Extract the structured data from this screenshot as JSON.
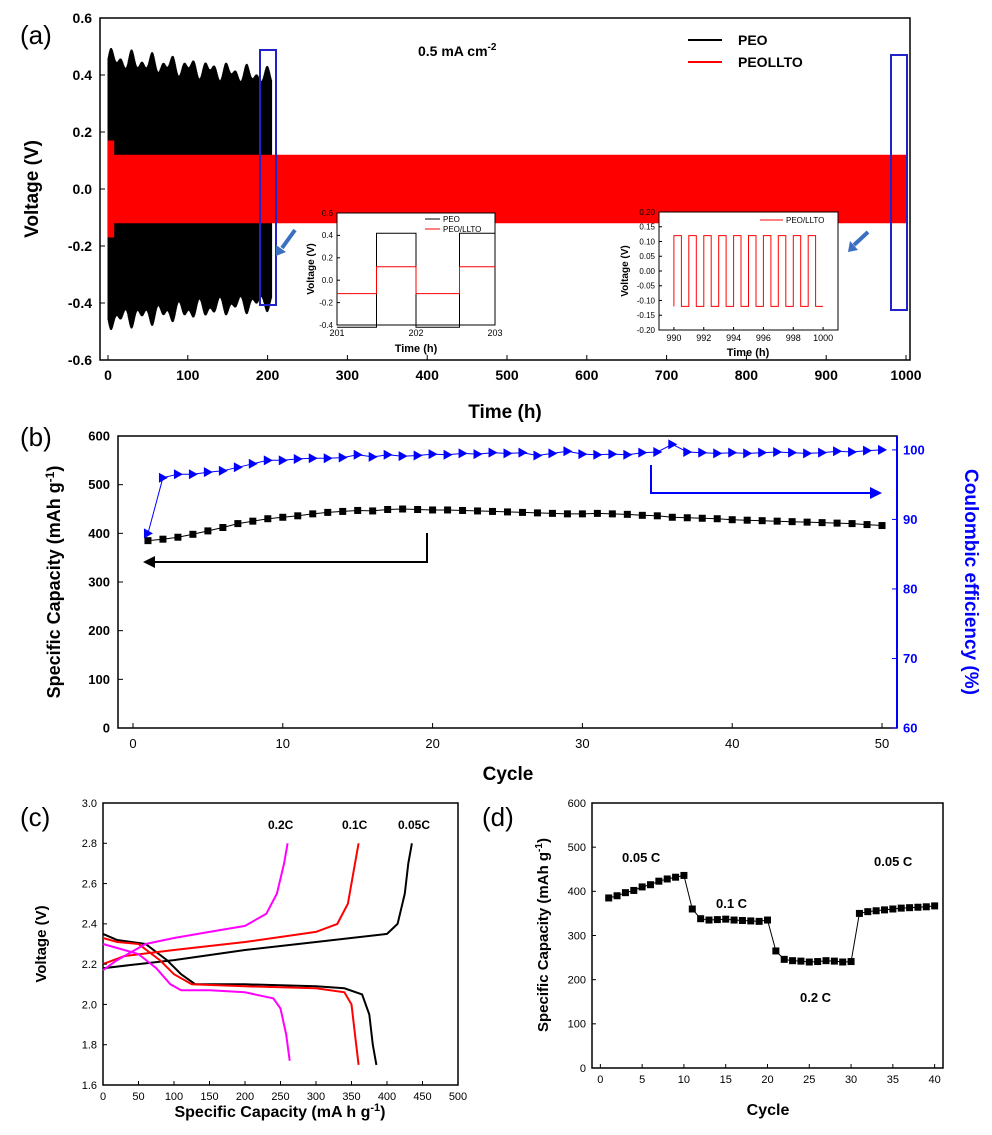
{
  "chart_data": [
    {
      "panel": "(a)",
      "type": "line",
      "xlabel": "Time (h)",
      "ylabel": "Voltage (V)",
      "xlim": [
        0,
        1000
      ],
      "ylim": [
        -0.6,
        0.6
      ],
      "xticks": [
        "0",
        "100",
        "200",
        "300",
        "400",
        "500",
        "600",
        "700",
        "800",
        "900",
        "1000"
      ],
      "yticks": [
        "0.6",
        "0.4",
        "0.2",
        "0.0",
        "-0.2",
        "-0.4",
        "-0.6"
      ],
      "annotation": "0.5 mA cm",
      "annotation_sup": "-2",
      "legend": [
        "PEO",
        "PEOLLTO"
      ],
      "series": [
        {
          "name": "PEO",
          "color": "#000000",
          "x_range": [
            0,
            205
          ],
          "amplitude_start": 0.5,
          "amplitude_end": 0.43
        },
        {
          "name": "PEOLLTO",
          "color": "#ff0000",
          "x_range": [
            0,
            1000
          ],
          "amplitude": 0.12
        }
      ],
      "insets": [
        {
          "xlabel": "Time (h)",
          "ylabel": "Voltage (V)",
          "xlim": [
            201,
            203
          ],
          "ylim": [
            -0.4,
            0.6
          ],
          "xticks": [
            "201",
            "202",
            "203"
          ],
          "yticks": [
            "0.6",
            "0.4",
            "0.2",
            "0.0",
            "-0.2",
            "-0.4"
          ],
          "legend": [
            "PEO",
            "PEO/LLTO"
          ],
          "series": [
            {
              "name": "PEO",
              "color": "#000000",
              "x": [
                201,
                201.5,
                201.5,
                202,
                202,
                202.55,
                202.55,
                203
              ],
              "y": [
                -0.42,
                -0.42,
                0.42,
                0.42,
                -0.42,
                -0.42,
                0.42,
                0.42
              ]
            },
            {
              "name": "PEO/LLTO",
              "color": "#ff0000",
              "x": [
                201,
                201.5,
                201.5,
                202,
                202,
                202.55,
                202.55,
                203
              ],
              "y": [
                -0.12,
                -0.12,
                0.12,
                0.12,
                -0.12,
                -0.12,
                0.12,
                0.12
              ]
            }
          ]
        },
        {
          "xlabel": "Time (h)",
          "ylabel": "Voltage (V)",
          "xlim": [
            989,
            1001
          ],
          "ylim": [
            -0.2,
            0.2
          ],
          "xticks": [
            "990",
            "992",
            "994",
            "996",
            "998",
            "1000"
          ],
          "yticks": [
            "0.20",
            "0.15",
            "0.10",
            "0.05",
            "0.00",
            "-0.05",
            "-0.10",
            "-0.15",
            "-0.20"
          ],
          "legend": [
            "PEO/LLTO"
          ],
          "series": [
            {
              "name": "PEO/LLTO",
              "color": "#ff0000",
              "square_wave": {
                "x_start": 990,
                "x_end": 1000,
                "period": 1,
                "high": 0.12,
                "low": -0.12
              }
            }
          ]
        }
      ]
    },
    {
      "panel": "(b)",
      "type": "scatter",
      "xlabel": "Cycle",
      "ylabel": "Specific Capacity (mAh g",
      "ylabel_sup": "-1",
      "ylabel_end": ")",
      "y2label": "Coulombic efficiency (%)",
      "xlim": [
        -1,
        51
      ],
      "ylim": [
        0,
        600
      ],
      "y2lim": [
        60,
        102
      ],
      "xticks": [
        "0",
        "10",
        "20",
        "30",
        "40",
        "50"
      ],
      "yticks": [
        "0",
        "100",
        "200",
        "300",
        "400",
        "500",
        "600"
      ],
      "y2ticks": [
        "60",
        "70",
        "80",
        "90",
        "100"
      ],
      "series": [
        {
          "name": "Specific Capacity",
          "color": "#000000",
          "marker": "square",
          "axis": "left",
          "x": [
            1,
            2,
            3,
            4,
            5,
            6,
            7,
            8,
            9,
            10,
            11,
            12,
            13,
            14,
            15,
            16,
            17,
            18,
            19,
            20,
            21,
            22,
            23,
            24,
            25,
            26,
            27,
            28,
            29,
            30,
            31,
            32,
            33,
            34,
            35,
            36,
            37,
            38,
            39,
            40,
            41,
            42,
            43,
            44,
            45,
            46,
            47,
            48,
            49,
            50
          ],
          "y": [
            385,
            388,
            392,
            398,
            405,
            412,
            420,
            425,
            430,
            433,
            436,
            440,
            443,
            445,
            447,
            446,
            449,
            450,
            449,
            448,
            448,
            447,
            446,
            445,
            444,
            443,
            442,
            441,
            440,
            440,
            441,
            440,
            439,
            437,
            436,
            433,
            432,
            431,
            430,
            428,
            427,
            426,
            425,
            424,
            423,
            422,
            421,
            420,
            418,
            416
          ]
        },
        {
          "name": "Coulombic efficiency",
          "color": "#0000ff",
          "marker": "triangle-right",
          "axis": "right",
          "x": [
            1,
            2,
            3,
            4,
            5,
            6,
            7,
            8,
            9,
            10,
            11,
            12,
            13,
            14,
            15,
            16,
            17,
            18,
            19,
            20,
            21,
            22,
            23,
            24,
            25,
            26,
            27,
            28,
            29,
            30,
            31,
            32,
            33,
            34,
            35,
            36,
            37,
            38,
            39,
            40,
            41,
            42,
            43,
            44,
            45,
            46,
            47,
            48,
            49,
            50
          ],
          "y": [
            88,
            96,
            96.5,
            96.5,
            96.8,
            97,
            97.5,
            98,
            98.5,
            98.5,
            98.7,
            98.8,
            98.8,
            98.9,
            99.3,
            99,
            99.3,
            99.1,
            99.2,
            99.4,
            99.3,
            99.5,
            99.4,
            99.6,
            99.5,
            99.6,
            99.2,
            99.5,
            99.8,
            99.4,
            99.3,
            99.4,
            99.3,
            99.6,
            99.7,
            100.8,
            99.7,
            99.6,
            99.5,
            99.6,
            99.5,
            99.6,
            99.7,
            99.6,
            99.5,
            99.6,
            99.8,
            99.7,
            99.9,
            100
          ]
        }
      ]
    },
    {
      "panel": "(c)",
      "type": "line",
      "xlabel": "Specific Capacity (mA h g",
      "xlabel_sup": "-1",
      "xlabel_end": ")",
      "ylabel": "Voltage (V)",
      "xlim": [
        0,
        500
      ],
      "ylim": [
        1.6,
        3.0
      ],
      "xticks": [
        "0",
        "50",
        "100",
        "150",
        "200",
        "250",
        "300",
        "350",
        "400",
        "450",
        "500"
      ],
      "yticks": [
        "1.6",
        "1.8",
        "2.0",
        "2.2",
        "2.4",
        "2.6",
        "2.8",
        "3.0"
      ],
      "series": [
        {
          "name": "0.05C",
          "color": "#000000",
          "charge": {
            "x": [
              0,
              50,
              100,
              200,
              300,
              400,
              415,
              425,
              430,
              435
            ],
            "y": [
              2.18,
              2.2,
              2.22,
              2.27,
              2.31,
              2.35,
              2.4,
              2.55,
              2.7,
              2.8
            ]
          },
          "discharge": {
            "x": [
              0,
              20,
              60,
              90,
              110,
              130,
              200,
              300,
              340,
              365,
              375,
              380,
              385
            ],
            "y": [
              2.35,
              2.32,
              2.3,
              2.22,
              2.15,
              2.1,
              2.1,
              2.09,
              2.08,
              2.05,
              1.95,
              1.8,
              1.7
            ]
          }
        },
        {
          "name": "0.1C",
          "color": "#ff0000",
          "charge": {
            "x": [
              0,
              30,
              100,
              200,
              300,
              330,
              345,
              355,
              360
            ],
            "y": [
              2.2,
              2.24,
              2.27,
              2.31,
              2.36,
              2.4,
              2.5,
              2.7,
              2.8
            ]
          },
          "discharge": {
            "x": [
              0,
              20,
              50,
              80,
              100,
              125,
              200,
              300,
              340,
              350,
              355,
              360
            ],
            "y": [
              2.33,
              2.31,
              2.3,
              2.22,
              2.15,
              2.1,
              2.09,
              2.08,
              2.06,
              2.0,
              1.85,
              1.7
            ]
          }
        },
        {
          "name": "0.2C",
          "color": "#ff00ff",
          "charge": {
            "x": [
              0,
              20,
              60,
              100,
              150,
              200,
              230,
              245,
              255,
              260
            ],
            "y": [
              2.17,
              2.22,
              2.3,
              2.33,
              2.36,
              2.39,
              2.45,
              2.55,
              2.7,
              2.8
            ]
          },
          "discharge": {
            "x": [
              0,
              20,
              50,
              75,
              95,
              110,
              150,
              200,
              240,
              250,
              258,
              263
            ],
            "y": [
              2.3,
              2.28,
              2.25,
              2.18,
              2.1,
              2.07,
              2.07,
              2.06,
              2.03,
              1.98,
              1.85,
              1.72
            ]
          }
        }
      ]
    },
    {
      "panel": "(d)",
      "type": "scatter",
      "xlabel": "Cycle",
      "ylabel": "Specific Capacity (mAh g",
      "ylabel_sup": "-1",
      "ylabel_end": ")",
      "xlim": [
        -1,
        41
      ],
      "ylim": [
        0,
        600
      ],
      "xticks": [
        "0",
        "5",
        "10",
        "15",
        "20",
        "25",
        "30",
        "35",
        "40"
      ],
      "yticks": [
        "0",
        "100",
        "200",
        "300",
        "400",
        "500",
        "600"
      ],
      "labels": [
        "0.05 C",
        "0.1 C",
        "0.2 C",
        "0.05 C"
      ],
      "series": [
        {
          "name": "Specific Capacity",
          "color": "#000000",
          "marker": "square",
          "x": [
            1,
            2,
            3,
            4,
            5,
            6,
            7,
            8,
            9,
            10,
            11,
            12,
            13,
            14,
            15,
            16,
            17,
            18,
            19,
            20,
            21,
            22,
            23,
            24,
            25,
            26,
            27,
            28,
            29,
            30,
            31,
            32,
            33,
            34,
            35,
            36,
            37,
            38,
            39,
            40
          ],
          "y": [
            385,
            390,
            397,
            402,
            410,
            415,
            423,
            428,
            432,
            436,
            360,
            338,
            335,
            336,
            337,
            335,
            334,
            333,
            332,
            335,
            265,
            246,
            243,
            242,
            240,
            241,
            243,
            242,
            240,
            241,
            350,
            354,
            356,
            358,
            360,
            362,
            363,
            364,
            365,
            367
          ]
        }
      ]
    }
  ]
}
